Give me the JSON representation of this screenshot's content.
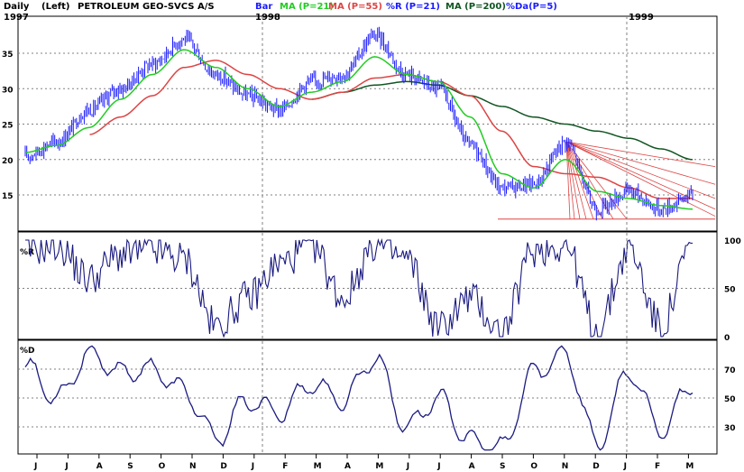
{
  "header": {
    "period": "Daily",
    "scale": "(Left)",
    "title": "PETROLEUM GEO-SVCS A/S",
    "legend": [
      {
        "label": "Bar",
        "color": "#1a1aff"
      },
      {
        "label": "MA (P=21)",
        "color": "#22cc22"
      },
      {
        "label": "MA (P=55)",
        "color": "#dd4444"
      },
      {
        "label": "%R (P=21)",
        "color": "#1a1aff"
      },
      {
        "label": "MA (P=200)",
        "color": "#115522"
      },
      {
        "label": "%Da(P=5)",
        "color": "#1a1aff"
      }
    ],
    "years": [
      "1997",
      "1998",
      "1999"
    ]
  },
  "panels": {
    "price": {
      "ticks": [
        "35",
        "30",
        "25",
        "20",
        "15"
      ],
      "min": 10.5,
      "max": 38.5
    },
    "pctR": {
      "label": "%R",
      "ticks": [
        "100",
        "50",
        "0"
      ]
    },
    "pctD": {
      "label": "%D",
      "ticks": [
        "70",
        "50",
        "30"
      ]
    }
  },
  "x_axis": {
    "months": [
      "J",
      "J",
      "A",
      "S",
      "O",
      "N",
      "D",
      "J",
      "F",
      "M",
      "A",
      "M",
      "J",
      "J",
      "A",
      "S",
      "O",
      "N",
      "D",
      "J",
      "F",
      "M"
    ]
  },
  "colors": {
    "bar": "#1a1aff",
    "ma21": "#22cc22",
    "ma55": "#dd4444",
    "ma200": "#115522",
    "gann": "#dd4444",
    "osc": "#1a1a80",
    "grid": "#808080"
  },
  "chart_data": [
    {
      "type": "line",
      "panel": "price",
      "title": "PETROLEUM GEO-SVCS A/S",
      "x": [
        "1997-06",
        "1997-07",
        "1997-08",
        "1997-09",
        "1997-10",
        "1997-11",
        "1997-12",
        "1998-01",
        "1998-02",
        "1998-03",
        "1998-04",
        "1998-05",
        "1998-06",
        "1998-07",
        "1998-08",
        "1998-09",
        "1998-10",
        "1998-11",
        "1998-12",
        "1999-01",
        "1999-02",
        "1999-03"
      ],
      "series": [
        {
          "name": "Bar",
          "values": [
            20.5,
            22.5,
            27,
            30,
            33.5,
            37,
            32,
            29,
            27,
            31,
            32,
            37.5,
            32,
            30,
            22,
            16,
            16.5,
            22.5,
            13,
            15.5,
            13,
            15
          ]
        },
        {
          "name": "MA (P=21)",
          "values": [
            21,
            22,
            24.5,
            28.5,
            32,
            35.5,
            33,
            30,
            27.5,
            29.5,
            31,
            34.5,
            32,
            31,
            26,
            18,
            16,
            20,
            15.5,
            14.5,
            13.5,
            13
          ]
        },
        {
          "name": "MA (P=55)",
          "values": [
            null,
            null,
            23.5,
            26,
            29,
            33,
            34,
            32,
            30,
            28.5,
            29.5,
            31.5,
            32,
            31,
            29,
            24,
            19,
            18,
            17.5,
            16,
            14.5,
            14.5
          ]
        },
        {
          "name": "MA (P=200)",
          "values": [
            null,
            null,
            null,
            null,
            null,
            null,
            null,
            null,
            null,
            28.5,
            29.5,
            30.5,
            31,
            30.5,
            29,
            27.5,
            26,
            25,
            24,
            23,
            21.5,
            20
          ]
        }
      ],
      "ylim": [
        10.5,
        38.5
      ]
    },
    {
      "type": "line",
      "panel": "pctR",
      "x": [
        "1997-06",
        "1997-07",
        "1997-08",
        "1997-09",
        "1997-10",
        "1997-11",
        "1997-12",
        "1998-01",
        "1998-02",
        "1998-03",
        "1998-04",
        "1998-05",
        "1998-06",
        "1998-07",
        "1998-08",
        "1998-09",
        "1998-10",
        "1998-11",
        "1998-12",
        "1999-01",
        "1999-02",
        "1999-03"
      ],
      "series": [
        {
          "name": "%R (P=21)",
          "values": [
            90,
            95,
            60,
            85,
            90,
            80,
            10,
            40,
            75,
            95,
            40,
            95,
            80,
            10,
            40,
            5,
            90,
            95,
            5,
            90,
            10,
            95
          ]
        }
      ],
      "ylim": [
        0,
        100
      ]
    },
    {
      "type": "line",
      "panel": "pctD",
      "x": [
        "1997-06",
        "1997-07",
        "1997-08",
        "1997-09",
        "1997-10",
        "1997-11",
        "1997-12",
        "1998-01",
        "1998-02",
        "1998-03",
        "1998-04",
        "1998-05",
        "1998-06",
        "1998-07",
        "1998-08",
        "1998-09",
        "1998-10",
        "1998-11",
        "1998-12",
        "1999-01",
        "1999-02",
        "1999-03"
      ],
      "series": [
        {
          "name": "%Da(P=5)",
          "values": [
            72,
            50,
            80,
            68,
            70,
            55,
            22,
            48,
            40,
            60,
            48,
            78,
            30,
            50,
            20,
            15,
            68,
            80,
            18,
            68,
            28,
            60
          ]
        }
      ],
      "ylim": [
        15,
        85
      ]
    }
  ]
}
